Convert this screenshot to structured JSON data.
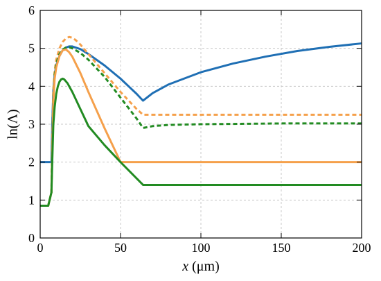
{
  "chart_data": {
    "type": "line",
    "xlabel": "x (μm)",
    "ylabel": "ln(Λ)",
    "xlabel_var": "x",
    "xlabel_unit": " (μm)",
    "xlim": [
      0,
      200
    ],
    "ylim": [
      0,
      6
    ],
    "xticks": [
      0,
      50,
      100,
      150,
      200
    ],
    "yticks": [
      0,
      1,
      2,
      3,
      4,
      5,
      6
    ],
    "grid": true,
    "series": [
      {
        "color": "#1f6fb4",
        "dash": "solid",
        "x": [
          0,
          5,
          7,
          7.5,
          8.2,
          9,
          10,
          12,
          14,
          16,
          18,
          20,
          25,
          30,
          40,
          50,
          60,
          64,
          70,
          80,
          100,
          120,
          140,
          160,
          180,
          200
        ],
        "y": [
          2.0,
          2.0,
          2.0,
          3.0,
          3.9,
          4.3,
          4.55,
          4.8,
          4.95,
          5.02,
          5.05,
          5.05,
          4.98,
          4.85,
          4.55,
          4.2,
          3.8,
          3.62,
          3.82,
          4.05,
          4.37,
          4.6,
          4.78,
          4.93,
          5.04,
          5.13
        ]
      },
      {
        "color": "#f5a04b",
        "dash": "dashed",
        "x": [
          0,
          5,
          7,
          7.5,
          8.2,
          9,
          10,
          12,
          14,
          16,
          18,
          20,
          22,
          25,
          30,
          40,
          50,
          60,
          64,
          70,
          100,
          150,
          200
        ],
        "y": [
          0.85,
          0.85,
          1.2,
          2.5,
          3.9,
          4.4,
          4.7,
          5.0,
          5.17,
          5.26,
          5.3,
          5.28,
          5.22,
          5.1,
          4.85,
          4.35,
          3.85,
          3.4,
          3.25,
          3.25,
          3.25,
          3.25,
          3.25
        ]
      },
      {
        "color": "#228b22",
        "dash": "dashed",
        "x": [
          0,
          5,
          7,
          7.5,
          8.2,
          9,
          10,
          12,
          14,
          16,
          18,
          20,
          25,
          30,
          40,
          50,
          60,
          64,
          70,
          80,
          100,
          150,
          200
        ],
        "y": [
          0.85,
          0.85,
          1.2,
          2.4,
          3.7,
          4.3,
          4.6,
          4.85,
          4.97,
          5.02,
          5.03,
          5.0,
          4.88,
          4.7,
          4.25,
          3.7,
          3.15,
          2.9,
          2.95,
          2.98,
          3.0,
          3.02,
          3.02
        ]
      },
      {
        "color": "#f5a04b",
        "dash": "solid",
        "x": [
          0,
          5,
          7,
          7.5,
          8.2,
          9,
          10,
          12,
          14,
          16,
          18,
          20,
          25,
          30,
          40,
          50,
          60,
          100,
          150,
          200
        ],
        "y": [
          0.85,
          0.85,
          1.2,
          2.3,
          3.6,
          4.2,
          4.5,
          4.8,
          4.95,
          4.97,
          4.9,
          4.78,
          4.35,
          3.85,
          2.9,
          2.0,
          2.0,
          2.0,
          2.0,
          2.0
        ]
      },
      {
        "color": "#228b22",
        "dash": "solid",
        "x": [
          0,
          5,
          7,
          7.5,
          8.2,
          9,
          10,
          11,
          12,
          13,
          14,
          15,
          17,
          20,
          25,
          30,
          40,
          50,
          64,
          100,
          150,
          200
        ],
        "y": [
          0.85,
          0.85,
          1.2,
          2.0,
          3.0,
          3.45,
          3.8,
          4.0,
          4.12,
          4.18,
          4.2,
          4.18,
          4.08,
          3.85,
          3.4,
          2.95,
          2.45,
          2.0,
          1.4,
          1.4,
          1.4,
          1.4
        ]
      }
    ]
  }
}
